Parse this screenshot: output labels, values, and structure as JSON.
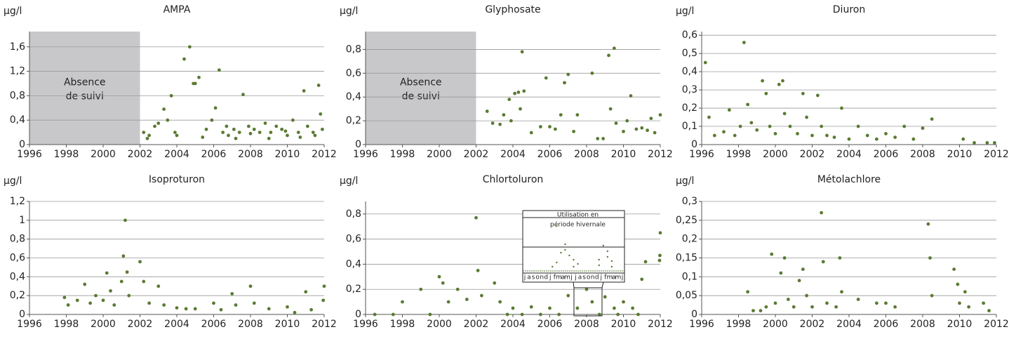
{
  "chart_data": [
    {
      "type": "scatter",
      "title": "AMPA",
      "y_label": "µg/l",
      "color": "#5b7a33",
      "grid": true,
      "xlim": [
        1996,
        2012
      ],
      "ylim": [
        0,
        1.85
      ],
      "xticks": [
        1996,
        1998,
        2000,
        2002,
        2004,
        2006,
        2008,
        2010,
        2012
      ],
      "yticks": [
        0,
        {
          "value": 0.4,
          "label": "0,4"
        },
        {
          "value": 0.8,
          "label": "0,8"
        },
        {
          "value": 1.2,
          "label": "1,2"
        },
        {
          "value": 1.6,
          "label": "1,6"
        }
      ],
      "no_data_region": [
        1996,
        2002
      ],
      "annotation": [
        "Absence",
        "de suivi"
      ],
      "x": [
        2002.2,
        2002.5,
        2002.8,
        2003.0,
        2003.3,
        2003.5,
        2003.7,
        2004.0,
        2004.4,
        2004.7,
        2004.9,
        2005.0,
        2005.2,
        2005.6,
        2005.9,
        2006.1,
        2006.3,
        2006.5,
        2006.8,
        2007.1,
        2007.4,
        2007.6,
        2007.9,
        2008.2,
        2008.5,
        2008.8,
        2009.1,
        2009.4,
        2009.7,
        2010.0,
        2010.3,
        2010.6,
        2010.9,
        2011.1,
        2011.4,
        2011.7,
        2011.9,
        2002.4,
        2003.9,
        2005.4,
        2006.7,
        2007.2,
        2008.0,
        2009.0,
        2009.9,
        2010.7,
        2011.5,
        2011.8
      ],
      "values": [
        0.2,
        0.15,
        0.3,
        0.35,
        0.58,
        0.4,
        0.8,
        0.15,
        1.4,
        1.6,
        1.0,
        1.0,
        1.1,
        0.25,
        0.4,
        0.6,
        1.22,
        0.2,
        0.15,
        0.25,
        0.2,
        0.82,
        0.3,
        0.25,
        0.2,
        0.35,
        0.2,
        0.3,
        0.25,
        0.15,
        0.4,
        0.2,
        0.88,
        0.3,
        0.2,
        0.97,
        0.25,
        0.1,
        0.2,
        0.12,
        0.3,
        0.1,
        0.18,
        0.1,
        0.22,
        0.12,
        0.15,
        0.5
      ]
    },
    {
      "type": "scatter",
      "title": "Glyphosate",
      "y_label": "µg/l",
      "color": "#5b7a33",
      "grid": true,
      "xlim": [
        1996,
        2012
      ],
      "ylim": [
        0,
        0.95
      ],
      "xticks": [
        1996,
        1998,
        2000,
        2002,
        2004,
        2006,
        2008,
        2010,
        2012
      ],
      "yticks": [
        0,
        {
          "value": 0.2,
          "label": "0,2"
        },
        {
          "value": 0.4,
          "label": "0,4"
        },
        {
          "value": 0.6,
          "label": "0,6"
        },
        {
          "value": 0.8,
          "label": "0,8"
        }
      ],
      "no_data_region": [
        1996,
        2002
      ],
      "annotation": [
        "Absence",
        "de suivi"
      ],
      "x": [
        2002.6,
        2002.9,
        2003.3,
        2003.5,
        2003.8,
        2003.9,
        2004.1,
        2004.3,
        2004.4,
        2004.5,
        2004.6,
        2005.0,
        2005.5,
        2005.8,
        2006.0,
        2006.3,
        2006.6,
        2006.8,
        2007.0,
        2007.3,
        2007.5,
        2008.3,
        2008.6,
        2008.9,
        2009.2,
        2009.3,
        2009.5,
        2009.6,
        2010.0,
        2010.2,
        2010.4,
        2010.7,
        2011.0,
        2011.3,
        2011.5,
        2011.7,
        2012.0
      ],
      "values": [
        0.28,
        0.18,
        0.17,
        0.25,
        0.38,
        0.2,
        0.43,
        0.44,
        0.3,
        0.78,
        0.45,
        0.1,
        0.15,
        0.56,
        0.15,
        0.13,
        0.25,
        0.52,
        0.59,
        0.11,
        0.25,
        0.6,
        0.05,
        0.05,
        0.75,
        0.3,
        0.81,
        0.18,
        0.11,
        0.2,
        0.41,
        0.13,
        0.14,
        0.12,
        0.22,
        0.1,
        0.25
      ]
    },
    {
      "type": "scatter",
      "title": "Diuron",
      "y_label": "µg/l",
      "color": "#5b7a33",
      "grid": true,
      "xlim": [
        1996,
        2012
      ],
      "ylim": [
        0,
        0.62
      ],
      "xticks": [
        1996,
        1998,
        2000,
        2002,
        2004,
        2006,
        2008,
        2010,
        2012
      ],
      "yticks": [
        0,
        {
          "value": 0.1,
          "label": "0,1"
        },
        {
          "value": 0.2,
          "label": "0,2"
        },
        {
          "value": 0.3,
          "label": "0,3"
        },
        {
          "value": 0.4,
          "label": "0,4"
        },
        {
          "value": 0.5,
          "label": "0,5"
        },
        {
          "value": 0.6,
          "label": "0,6"
        }
      ],
      "x": [
        1996.2,
        1996.4,
        1996.7,
        1997.2,
        1997.5,
        1997.8,
        1998.1,
        1998.3,
        1998.5,
        1998.7,
        1999.0,
        1999.3,
        1999.5,
        1999.7,
        2000.0,
        2000.2,
        2000.4,
        2000.5,
        2000.8,
        2001.2,
        2001.5,
        2001.7,
        2002.0,
        2002.3,
        2002.5,
        2002.8,
        2003.2,
        2003.6,
        2004.0,
        2004.5,
        2005.0,
        2005.5,
        2006.0,
        2006.5,
        2007.0,
        2007.5,
        2008.0,
        2008.5,
        2010.2,
        2010.8,
        2011.5,
        2011.9
      ],
      "values": [
        0.45,
        0.15,
        0.05,
        0.07,
        0.19,
        0.05,
        0.1,
        0.56,
        0.22,
        0.12,
        0.08,
        0.35,
        0.28,
        0.1,
        0.06,
        0.33,
        0.35,
        0.17,
        0.1,
        0.06,
        0.28,
        0.15,
        0.05,
        0.27,
        0.1,
        0.05,
        0.04,
        0.2,
        0.03,
        0.1,
        0.05,
        0.03,
        0.06,
        0.04,
        0.1,
        0.03,
        0.09,
        0.14,
        0.03,
        0.01,
        0.01,
        0.01
      ]
    },
    {
      "type": "scatter",
      "title": "Isoproturon",
      "y_label": "µg/l",
      "color": "#5b7a33",
      "grid": true,
      "xlim": [
        1996,
        2012
      ],
      "ylim": [
        0,
        1.2
      ],
      "xticks": [
        1996,
        1998,
        2000,
        2002,
        2004,
        2006,
        2008,
        2010,
        2012
      ],
      "yticks": [
        0,
        {
          "value": 0.2,
          "label": "0,2"
        },
        {
          "value": 0.4,
          "label": "0,4"
        },
        {
          "value": 0.6,
          "label": "0,6"
        },
        {
          "value": 0.8,
          "label": "0,8"
        },
        1,
        {
          "value": 1.2,
          "label": "1,2"
        }
      ],
      "x": [
        1997.9,
        1998.1,
        1998.6,
        1999.0,
        1999.3,
        1999.6,
        2000.0,
        2000.2,
        2000.4,
        2000.6,
        2001.0,
        2001.1,
        2001.2,
        2001.3,
        2001.4,
        2002.0,
        2002.2,
        2002.5,
        2003.0,
        2003.3,
        2004.0,
        2004.5,
        2005.0,
        2006.0,
        2006.4,
        2007.0,
        2007.2,
        2008.0,
        2008.2,
        2009.0,
        2010.0,
        2010.4,
        2011.0,
        2011.3,
        2012.0,
        2011.95
      ],
      "values": [
        0.18,
        0.1,
        0.15,
        0.32,
        0.12,
        0.2,
        0.15,
        0.44,
        0.25,
        0.1,
        0.35,
        0.62,
        1.0,
        0.45,
        0.2,
        0.56,
        0.35,
        0.12,
        0.3,
        0.1,
        0.07,
        0.06,
        0.06,
        0.12,
        0.05,
        0.22,
        0.1,
        0.3,
        0.12,
        0.06,
        0.08,
        0.02,
        0.24,
        0.05,
        0.3,
        0.15
      ]
    },
    {
      "type": "scatter",
      "title": "Chlortoluron",
      "y_label": "µg/l",
      "color": "#5b7a33",
      "grid": true,
      "xlim": [
        1996,
        2012
      ],
      "ylim": [
        0,
        0.9
      ],
      "xticks": [
        1996,
        1998,
        2000,
        2002,
        2004,
        2006,
        2008,
        2010,
        2012
      ],
      "yticks": [
        0,
        {
          "value": 0.2,
          "label": "0,2"
        },
        {
          "value": 0.4,
          "label": "0,4"
        },
        {
          "value": 0.6,
          "label": "0,6"
        },
        {
          "value": 0.8,
          "label": "0,8"
        }
      ],
      "inset": {
        "title": [
          "Utilisation en",
          "période hivernale"
        ],
        "months": [
          "j",
          "a",
          "s",
          "o",
          "n",
          "d",
          "j",
          "f",
          "m",
          "a",
          "m",
          "j",
          "j",
          "a",
          "s",
          "o",
          "n",
          "d",
          "j",
          "f",
          "m",
          "a",
          "m",
          "j"
        ]
      },
      "x": [
        1998.0,
        1999.0,
        2000.0,
        2000.2,
        2000.5,
        2001.0,
        2001.5,
        2002.0,
        2002.1,
        2002.3,
        2003.0,
        2003.3,
        2004.0,
        2005.0,
        2006.0,
        2007.0,
        2007.5,
        2008.0,
        2008.3,
        2009.0,
        2009.5,
        2010.0,
        2010.5,
        2011.0,
        2011.2,
        2012.0,
        2011.98,
        2011.96,
        1996.5,
        1997.5,
        1999.5,
        2003.7,
        2004.5,
        2005.5,
        2006.5,
        2008.7,
        2009.7,
        2010.8
      ],
      "values": [
        0.1,
        0.2,
        0.3,
        0.25,
        0.1,
        0.2,
        0.12,
        0.77,
        0.35,
        0.15,
        0.25,
        0.1,
        0.05,
        0.06,
        0.05,
        0.15,
        0.05,
        0.2,
        0.1,
        0.14,
        0.05,
        0.1,
        0.05,
        0.28,
        0.42,
        0.65,
        0.47,
        0.43,
        0,
        0,
        0,
        0,
        0,
        0,
        0,
        0,
        0,
        0
      ]
    },
    {
      "type": "scatter",
      "title": "Métolachlore",
      "y_label": "µg/l",
      "color": "#5b7a33",
      "grid": true,
      "xlim": [
        1996,
        2012
      ],
      "ylim": [
        0,
        0.3
      ],
      "xticks": [
        1996,
        1998,
        2000,
        2002,
        2004,
        2006,
        2008,
        2010,
        2012
      ],
      "yticks": [
        0,
        {
          "value": 0.05,
          "label": "0,05"
        },
        {
          "value": 0.1,
          "label": "0,1"
        },
        {
          "value": 0.15,
          "label": "0,15"
        },
        {
          "value": 0.2,
          "label": "0,2"
        },
        {
          "value": 0.25,
          "label": "0,25"
        },
        {
          "value": 0.3,
          "label": "0,3"
        }
      ],
      "x": [
        1998.5,
        1998.8,
        1999.2,
        1999.5,
        1999.8,
        2000.0,
        2000.3,
        2000.5,
        2000.7,
        2001.0,
        2001.3,
        2001.5,
        2001.7,
        2002.0,
        2002.5,
        2002.6,
        2002.8,
        2003.3,
        2003.5,
        2003.6,
        2004.5,
        2005.5,
        2006.0,
        2006.5,
        2008.3,
        2008.4,
        2008.5,
        2009.7,
        2009.9,
        2010.0,
        2010.3,
        2010.5,
        2011.3,
        2011.6
      ],
      "values": [
        0.06,
        0.01,
        0.01,
        0.02,
        0.16,
        0.03,
        0.11,
        0.15,
        0.04,
        0.02,
        0.09,
        0.12,
        0.05,
        0.02,
        0.27,
        0.14,
        0.03,
        0.02,
        0.15,
        0.06,
        0.04,
        0.03,
        0.03,
        0.02,
        0.24,
        0.15,
        0.05,
        0.12,
        0.08,
        0.03,
        0.06,
        0.02,
        0.03,
        0.01
      ]
    }
  ]
}
